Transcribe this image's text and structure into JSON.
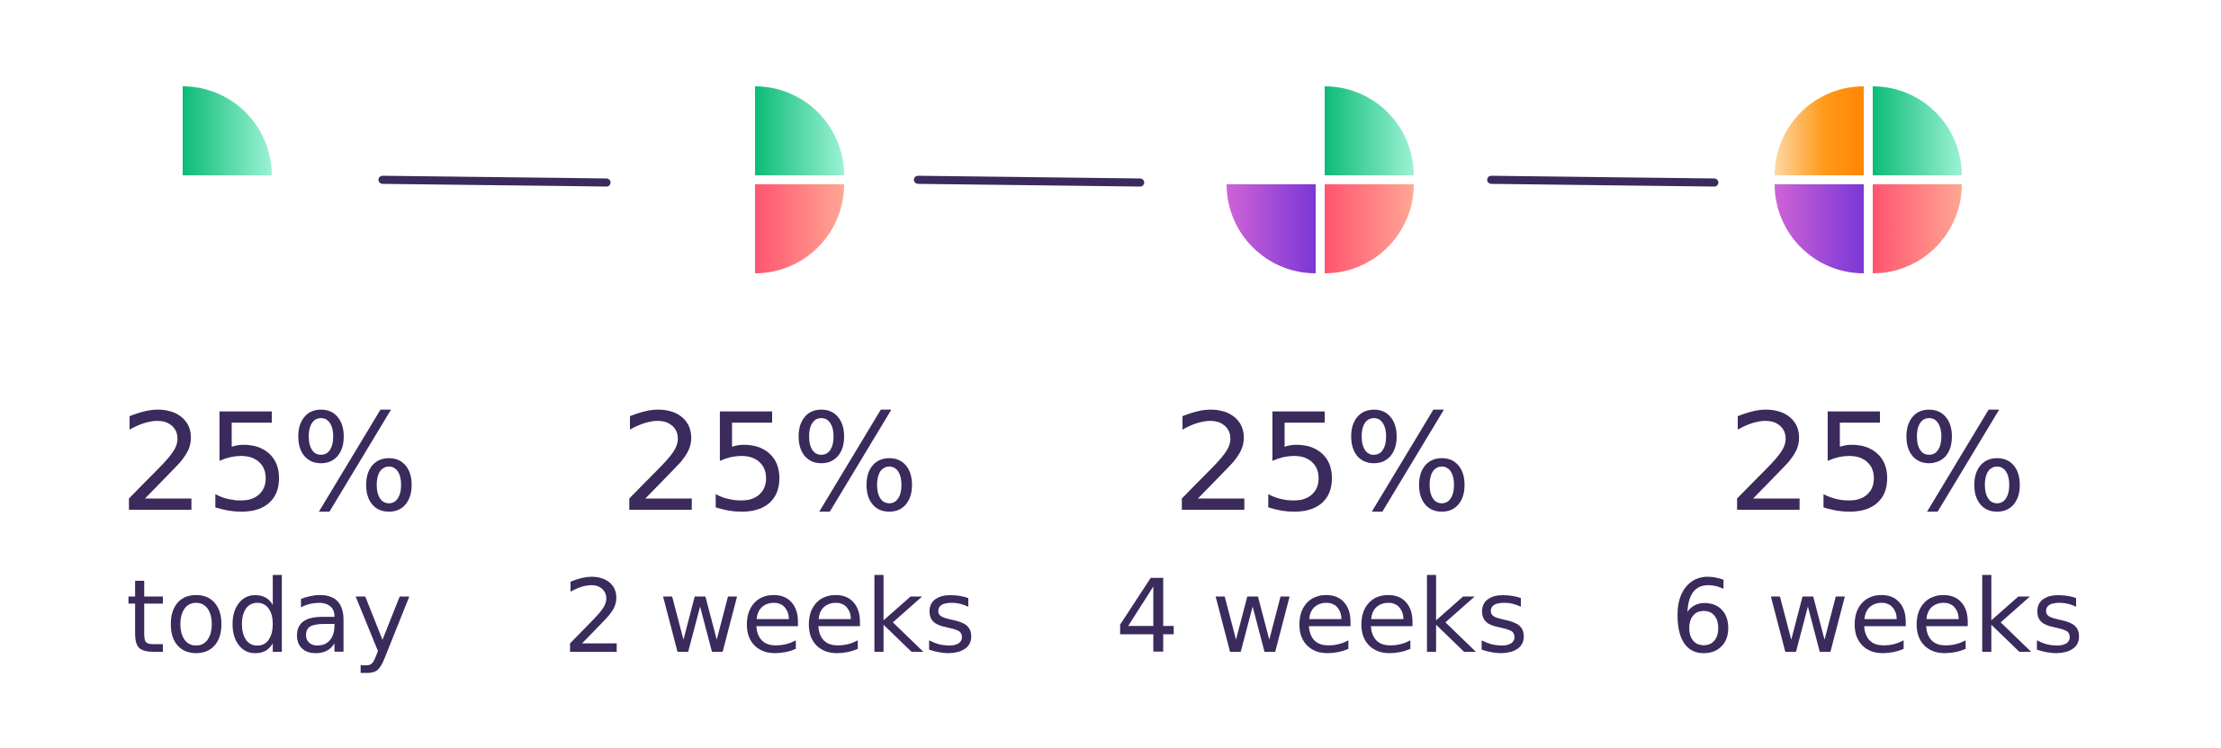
{
  "steps": [
    {
      "amount": "25%",
      "label": "today"
    },
    {
      "amount": "25%",
      "label": "2 weeks"
    },
    {
      "amount": "25%",
      "label": "4 weeks"
    },
    {
      "amount": "25%",
      "label": "6 weeks"
    }
  ]
}
